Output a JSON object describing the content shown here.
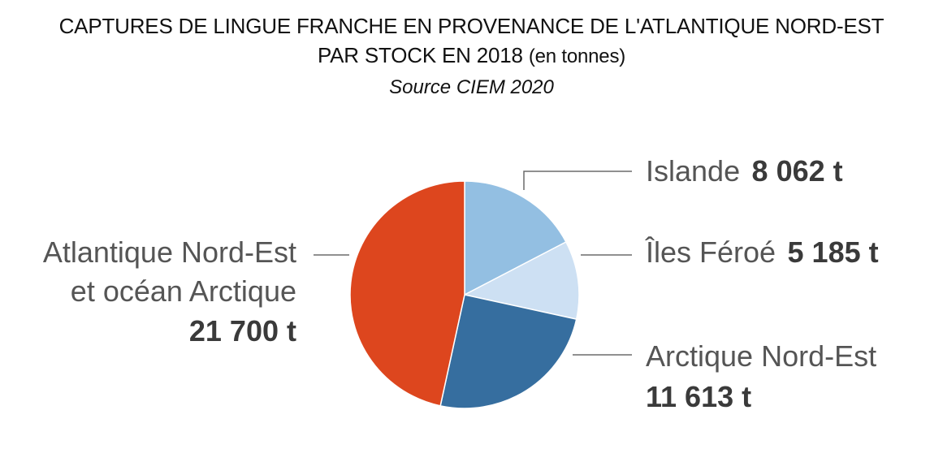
{
  "title": {
    "line1": "CAPTURES DE LINGUE FRANCHE EN PROVENANCE DE L'ATLANTIQUE NORD-EST",
    "line2_main": "PAR STOCK EN 2018",
    "line2_unit": "(en tonnes)",
    "source": "Source CIEM 2020"
  },
  "chart_data": {
    "type": "pie",
    "title": "CAPTURES DE LINGUE FRANCHE EN PROVENANCE DE L'ATLANTIQUE NORD-EST PAR STOCK EN 2018 (en tonnes)",
    "subtitle": "Source CIEM 2020",
    "unit": "t",
    "slices": [
      {
        "label": "Islande",
        "value": 8062,
        "value_label": "8 062 t",
        "color": "#93bfe2"
      },
      {
        "label": "Îles Féroé",
        "value": 5185,
        "value_label": "5 185 t",
        "color": "#cde0f3"
      },
      {
        "label": "Arctique Nord-Est",
        "value": 11613,
        "value_label": "11 613 t",
        "color": "#366e9f"
      },
      {
        "label": "Atlantique Nord-Est et océan Arctique",
        "label_lines": [
          "Atlantique Nord-Est",
          "et océan Arctique"
        ],
        "value": 21700,
        "value_label": "21 700 t",
        "color": "#dd461e"
      }
    ]
  }
}
